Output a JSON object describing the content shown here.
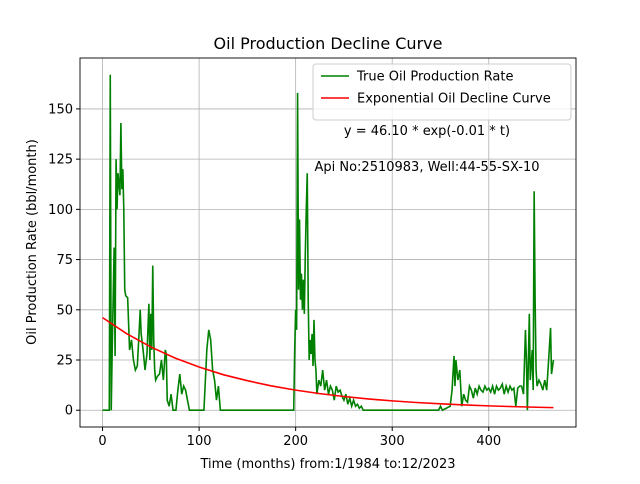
{
  "chart_data": {
    "type": "line",
    "title": "Oil Production Decline Curve",
    "xlabel": "Time (months) from:1/1984 to:12/2023",
    "ylabel": "Oil Production Rate (bbl/month)",
    "annotations": [
      "y = 46.10 * exp(-0.01 * t)",
      "Api No:2510983, Well:44-55-SX-10"
    ],
    "xlim": [
      -23.35,
      490.35
    ],
    "xticks": [
      0,
      100,
      200,
      300,
      400
    ],
    "ylim": [
      -8.35,
      175.35
    ],
    "yticks": [
      0,
      25,
      50,
      75,
      100,
      125,
      150
    ],
    "grid": true,
    "legend": "upper right",
    "series": [
      {
        "name": "True Oil Production Rate",
        "color": "#008000",
        "x": [
          0,
          7,
          8,
          9,
          10,
          12,
          13,
          14,
          15,
          16,
          18,
          19,
          20,
          21,
          22,
          23,
          24,
          26,
          28,
          30,
          32,
          34,
          36,
          38,
          39,
          40,
          42,
          44,
          46,
          48,
          49,
          50,
          51,
          52,
          53,
          54,
          55,
          57,
          59,
          61,
          63,
          65,
          66,
          67,
          69,
          71,
          73,
          76,
          78,
          80,
          82,
          84,
          86,
          88,
          90,
          105,
          108,
          110,
          112,
          114,
          116,
          118,
          120,
          122,
          198,
          199,
          200,
          201,
          202,
          203,
          204,
          205,
          206,
          207,
          208,
          209,
          210,
          211,
          212,
          213,
          214,
          215,
          216,
          217,
          218,
          219,
          220,
          221,
          222,
          224,
          226,
          228,
          230,
          232,
          234,
          236,
          238,
          240,
          242,
          244,
          246,
          248,
          250,
          252,
          254,
          256,
          258,
          260,
          262,
          264,
          266,
          268,
          270,
          348,
          350,
          352,
          360,
          362,
          364,
          365,
          366,
          368,
          370,
          372,
          374,
          376,
          378,
          380,
          382,
          384,
          386,
          388,
          390,
          392,
          394,
          396,
          398,
          400,
          402,
          404,
          406,
          408,
          410,
          412,
          414,
          416,
          418,
          420,
          422,
          424,
          426,
          428,
          430,
          432,
          434,
          436,
          438,
          439,
          440,
          442,
          443,
          445,
          446,
          447,
          448,
          449,
          450,
          452,
          454,
          456,
          458,
          460,
          462,
          464,
          465,
          467
        ],
        "values": [
          0,
          0,
          167,
          0,
          30,
          81,
          27,
          125,
          100,
          118,
          107,
          143,
          110,
          120,
          100,
          60,
          57,
          56,
          30,
          35,
          25,
          20,
          22,
          40,
          50,
          38,
          30,
          20,
          28,
          53,
          25,
          48,
          30,
          72,
          35,
          20,
          15,
          17,
          18,
          25,
          15,
          30,
          28,
          5,
          2,
          8,
          0,
          0,
          10,
          18,
          8,
          12,
          10,
          5,
          0,
          0,
          30,
          40,
          35,
          20,
          15,
          5,
          12,
          0,
          0,
          30,
          50,
          40,
          158,
          60,
          95,
          55,
          68,
          50,
          65,
          48,
          78,
          100,
          118,
          55,
          25,
          35,
          28,
          38,
          22,
          45,
          25,
          20,
          8,
          15,
          12,
          20,
          10,
          15,
          8,
          12,
          10,
          5,
          12,
          9,
          10,
          7,
          5,
          8,
          3,
          6,
          2,
          5,
          2,
          3,
          1,
          2,
          0,
          0,
          2,
          0,
          2,
          10,
          27,
          12,
          25,
          15,
          20,
          2,
          8,
          5,
          4,
          12,
          10,
          6,
          11,
          8,
          12,
          10,
          9,
          12,
          10,
          11,
          9,
          12,
          8,
          12,
          10,
          11,
          13,
          8,
          12,
          9,
          12,
          10,
          11,
          2,
          11,
          12,
          12,
          8,
          40,
          25,
          0,
          48,
          15,
          30,
          10,
          109,
          55,
          20,
          12,
          15,
          13,
          10,
          15,
          10,
          25,
          41,
          18,
          25
        ]
      },
      {
        "name": "Exponential Oil Decline Curve",
        "color": "#ff0000",
        "x": [
          0,
          25,
          50,
          75,
          100,
          125,
          150,
          175,
          200,
          225,
          250,
          275,
          300,
          325,
          350,
          375,
          400,
          425,
          450,
          467
        ],
        "values": [
          46.1,
          38.1,
          31.5,
          26.0,
          21.5,
          17.7,
          14.7,
          12.1,
          10.0,
          8.27,
          6.83,
          5.64,
          4.66,
          3.85,
          3.18,
          2.63,
          2.17,
          1.79,
          1.48,
          1.3
        ]
      }
    ]
  }
}
